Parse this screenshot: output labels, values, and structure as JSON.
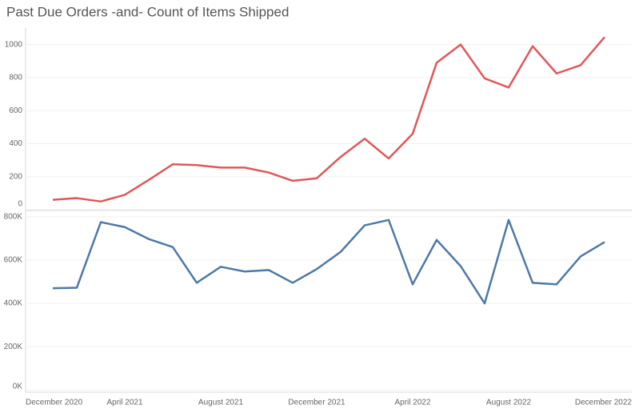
{
  "chart_data": {
    "type": "line",
    "title": "Past Due Orders -and- Count of Items Shipped",
    "categories": [
      "December 2020",
      null,
      null,
      null,
      "April 2021",
      null,
      null,
      null,
      "August 2021",
      null,
      null,
      null,
      "December 2021",
      null,
      null,
      null,
      "April 2022",
      null,
      null,
      null,
      "August 2022",
      null,
      null,
      null,
      "December 2022"
    ],
    "grid": true,
    "panels": [
      {
        "ylim": [
          0,
          1100
        ],
        "yticks": [
          0,
          200,
          400,
          600,
          800,
          1000
        ],
        "series": [
          {
            "color": "#e15759",
            "values": [
              null,
              60,
              70,
              50,
              90,
              180,
              275,
              270,
              255,
              255,
              225,
              175,
              190,
              320,
              430,
              310,
              460,
              890,
              1000,
              795,
              740,
              990,
              825,
              875,
              1045
            ]
          }
        ]
      },
      {
        "ylim": [
          -10000,
          825000
        ],
        "yticks": [
          {
            "value": 0,
            "label": "0K"
          },
          {
            "value": 200000,
            "label": "200K"
          },
          {
            "value": 400000,
            "label": "400K"
          },
          {
            "value": 600000,
            "label": "600K"
          },
          {
            "value": 800000,
            "label": "800K"
          }
        ],
        "series": [
          {
            "color": "#4e79a7",
            "values": [
              null,
              470000,
              472000,
              775000,
              752000,
              697000,
              660000,
              495000,
              569000,
              547000,
              554000,
              495000,
              558000,
              638000,
              760000,
              785000,
              488000,
              693000,
              572000,
              400000,
              785000,
              495000,
              488000,
              617000,
              683000
            ]
          }
        ]
      }
    ]
  }
}
